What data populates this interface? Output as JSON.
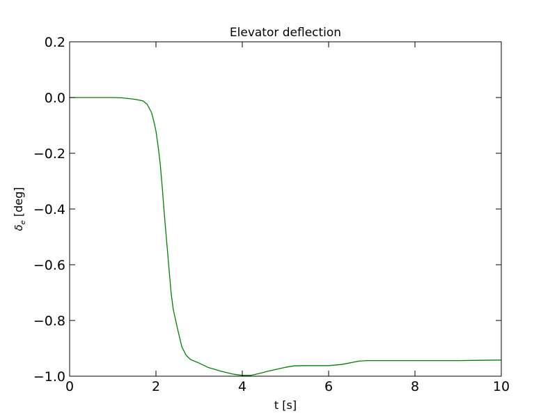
{
  "chart_data": {
    "type": "line",
    "title": "Elevator deflection",
    "xlabel": "t [s]",
    "ylabel": {
      "symbol": "δ",
      "subscript": "e",
      "unit": "[deg]"
    },
    "xlim": [
      0,
      10
    ],
    "ylim": [
      -1.0,
      0.2
    ],
    "xticks": [
      0,
      2,
      4,
      6,
      8,
      10
    ],
    "xtick_labels": [
      "0",
      "2",
      "4",
      "6",
      "8",
      "10"
    ],
    "yticks": [
      0.2,
      0.0,
      -0.2,
      -0.4,
      -0.6,
      -0.8,
      -1.0
    ],
    "ytick_labels": [
      "0.2",
      "0.0",
      "−0.2",
      "−0.4",
      "−0.6",
      "−0.8",
      "−1.0"
    ],
    "grid": false,
    "series": [
      {
        "color": "#008000",
        "x": [
          0,
          1.0,
          1.2,
          1.5,
          1.7,
          1.8,
          1.9,
          1.95,
          2.0,
          2.05,
          2.1,
          2.15,
          2.2,
          2.3,
          2.35,
          2.4,
          2.5,
          2.6,
          2.7,
          2.8,
          3.0,
          3.2,
          3.5,
          3.8,
          4.0,
          4.2,
          4.4,
          4.6,
          4.8,
          5.0,
          5.2,
          5.4,
          5.8,
          6.0,
          6.3,
          6.5,
          6.7,
          6.9,
          7.2,
          7.5,
          8.0,
          8.5,
          9.0,
          9.5,
          10.0
        ],
        "y": [
          0.0,
          0.0,
          -0.001,
          -0.006,
          -0.012,
          -0.025,
          -0.055,
          -0.085,
          -0.12,
          -0.175,
          -0.24,
          -0.33,
          -0.43,
          -0.61,
          -0.7,
          -0.76,
          -0.83,
          -0.895,
          -0.925,
          -0.94,
          -0.953,
          -0.968,
          -0.982,
          -0.993,
          -0.997,
          -0.997,
          -0.99,
          -0.982,
          -0.975,
          -0.968,
          -0.963,
          -0.962,
          -0.962,
          -0.962,
          -0.958,
          -0.952,
          -0.946,
          -0.944,
          -0.944,
          -0.944,
          -0.944,
          -0.944,
          -0.944,
          -0.943,
          -0.942
        ]
      }
    ]
  }
}
